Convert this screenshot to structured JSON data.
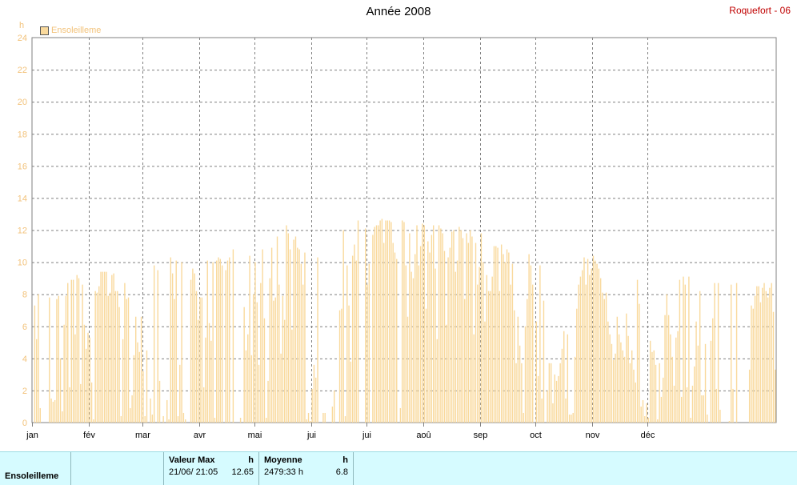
{
  "station": "Roquefort - 06",
  "chart_data": {
    "type": "bar",
    "title": "Année 2008",
    "ylabel": "h",
    "ylim": [
      0,
      24
    ],
    "yticks": [
      0,
      2,
      4,
      6,
      8,
      10,
      12,
      14,
      16,
      18,
      20,
      22,
      24
    ],
    "xtick_labels": [
      "jan",
      "fév",
      "mar",
      "avr",
      "mai",
      "jui",
      "jui",
      "aoû",
      "sep",
      "oct",
      "nov",
      "déc"
    ],
    "grid": true,
    "legend_position": "top-left",
    "color": "#f9d99c",
    "series": [
      {
        "name": "Ensoleilleme",
        "values": [
          0,
          7.3,
          5.2,
          8,
          0.9,
          0,
          0,
          0,
          0,
          7.8,
          1.5,
          1.3,
          1.4,
          7.7,
          7.9,
          4,
          0.7,
          6.1,
          7.9,
          8.7,
          2.2,
          8.9,
          8.9,
          5.5,
          9.2,
          9,
          2.4,
          8.6,
          6.1,
          4.6,
          5.6,
          5.3,
          2.5,
          0.2,
          8.2,
          8.1,
          8.5,
          9.4,
          9.4,
          9.4,
          9.4,
          7.9,
          8.1,
          9.2,
          9.3,
          8.2,
          8.2,
          7.2,
          0.4,
          5.2,
          8.7,
          7.7,
          7.8,
          0.9,
          1.7,
          4.2,
          6.6,
          5,
          4.4,
          6.6,
          3.2,
          0.4,
          4.5,
          0,
          1.5,
          0.5,
          9.8,
          0,
          9.5,
          2.6,
          0,
          0.4,
          0,
          1.4,
          0.2,
          10.3,
          9.3,
          7.7,
          10.1,
          0.4,
          3.6,
          10,
          0.6,
          0.2,
          0,
          0,
          8.9,
          9.6,
          9.3,
          8.2,
          6.4,
          7.8,
          7.8,
          2.2,
          5.3,
          10.1,
          6.2,
          5.1,
          10,
          0.3,
          10.1,
          10.3,
          10.2,
          9.8,
          0,
          9.5,
          10.1,
          10.3,
          0,
          10.8,
          0,
          0,
          0,
          0.3,
          0,
          7.2,
          4.5,
          5.5,
          10.4,
          4.2,
          8,
          10,
          7.5,
          3.6,
          8.7,
          10.8,
          6.5,
          0.3,
          2.6,
          9,
          10.9,
          7.6,
          7.8,
          11.6,
          8.6,
          4.3,
          7.9,
          6.4,
          12.3,
          11.8,
          10.8,
          5.8,
          11.4,
          11.6,
          10.9,
          10.8,
          9.9,
          8.6,
          10.6,
          0.2,
          0.6,
          0.1,
          2.1,
          3.6,
          2.8,
          10.3,
          0,
          0,
          0.6,
          0.6,
          0,
          0,
          0,
          1,
          2,
          0,
          0,
          7,
          7.1,
          12,
          0.4,
          9.8,
          7.3,
          3.8,
          10.4,
          11.1,
          10.1,
          12.6,
          0,
          0,
          0,
          12.1,
          8.6,
          9.9,
          0,
          11.7,
          12.2,
          12.3,
          12.3,
          12.6,
          12.7,
          11.2,
          12.6,
          12.6,
          12.6,
          12.5,
          11.2,
          10.6,
          10.2,
          0,
          0.9,
          12.6,
          12.5,
          9.8,
          6.6,
          11.8,
          9.4,
          9,
          10.5,
          12.3,
          9.8,
          11,
          12.4,
          12.3,
          7.1,
          11.3,
          10.6,
          11.7,
          12.3,
          9.6,
          5.2,
          12.3,
          12.1,
          11.8,
          10.7,
          6.1,
          10.3,
          10.9,
          11.9,
          12,
          9.4,
          10.1,
          12.2,
          12,
          11.5,
          7.7,
          11.8,
          11.2,
          12,
          11.6,
          5.5,
          11.2,
          8.6,
          9.7,
          11.8,
          10,
          6.3,
          9.2,
          8.2,
          8.2,
          9.1,
          11,
          11,
          10.9,
          8.2,
          11.1,
          10.5,
          10,
          10.8,
          10.6,
          8.6,
          9.9,
          7,
          3.7,
          6.6,
          4.8,
          3.7,
          0.6,
          6,
          7.7,
          10.5,
          9.8,
          8.6,
          0,
          6.3,
          2.9,
          9.8,
          1.5,
          7.6,
          0,
          2,
          3.7,
          3.7,
          1.2,
          3,
          2.6,
          2.9,
          3.7,
          4.6,
          5.7,
          1.5,
          5.5,
          0.5,
          0.5,
          0.6,
          4.1,
          7.1,
          8.6,
          9.1,
          9.5,
          10.3,
          8.6,
          10.2,
          9.2,
          9.6,
          10.4,
          10.1,
          9.9,
          9.6,
          9,
          8.1,
          7.7,
          8.1,
          6.3,
          5.5,
          4.9,
          3.9,
          4.3,
          6.6,
          5.5,
          5,
          4.5,
          4.1,
          6.8,
          5.4,
          3.7,
          4.5,
          3.3,
          2.5,
          8.9,
          7.4,
          1,
          1.4,
          0.4,
          1.2,
          0.3,
          5.1,
          4.4,
          4.5,
          3.6,
          0.2,
          3.7,
          1.6,
          2.8,
          6.7,
          8,
          6.7,
          5.5,
          4.1,
          2.3,
          5.3,
          5.7,
          8.9,
          1.6,
          9.1,
          8.6,
          2.2,
          9.1,
          0.3,
          2.3,
          3.5,
          6.3,
          4.8,
          8.2,
          1.7,
          1.7,
          4.9,
          0.5,
          0,
          5.1,
          6.5,
          8.7,
          2.1,
          8.7,
          0.8,
          0,
          0,
          0,
          0,
          0.1,
          8.6,
          2.1,
          0,
          8.7,
          0,
          0,
          0,
          0,
          0,
          0,
          3.3,
          7.3,
          7.1,
          7.9,
          8.5,
          8.5,
          7.5,
          8.4,
          8.7,
          8.2,
          7.8,
          8.4,
          8.7,
          6.9,
          3.3
        ]
      }
    ]
  },
  "footer": {
    "label": "Ensoleilleme",
    "max_title": "Valeur Max",
    "max_unit": "h",
    "max_date": "21/06/",
    "max_time": "21:05",
    "max_value": "12.65",
    "avg_title": "Moyenne",
    "avg_unit": "h",
    "avg_total": "2479:33 h",
    "avg_value": "6.8"
  }
}
